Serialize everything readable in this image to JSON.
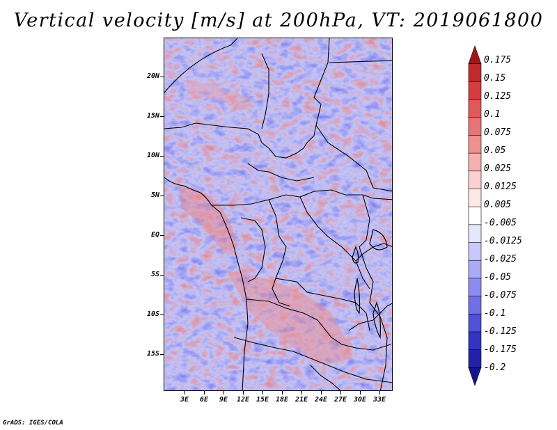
{
  "title": "Vertical velocity [m/s] at 200hPa, VT: 2019061800",
  "credit": "GrADS: IGES/COLA",
  "map": {
    "lat_labels": [
      "20N",
      "15N",
      "10N",
      "5N",
      "EQ",
      "5S",
      "10S",
      "15S"
    ],
    "lon_labels": [
      "3E",
      "6E",
      "9E",
      "12E",
      "15E",
      "18E",
      "21E",
      "24E",
      "27E",
      "30E",
      "33E"
    ]
  },
  "colorbar": {
    "levels": [
      "0.175",
      "0.15",
      "0.125",
      "0.1",
      "0.075",
      "0.05",
      "0.025",
      "0.0125",
      "0.005",
      "-0.005",
      "-0.0125",
      "-0.025",
      "-0.05",
      "-0.075",
      "-0.1",
      "-0.125",
      "-0.175",
      "-0.2"
    ],
    "colors": [
      "#a01818",
      "#c02a2a",
      "#d63c3c",
      "#e05858",
      "#e67474",
      "#ee9090",
      "#f5b0b0",
      "#fad0d0",
      "#fde8e8",
      "#ffffff",
      "#e6e6fe",
      "#c8c8fa",
      "#aaaaf6",
      "#8c8cf0",
      "#7070e6",
      "#5050d8",
      "#3434c2",
      "#2222a8",
      "#14148e"
    ]
  }
}
